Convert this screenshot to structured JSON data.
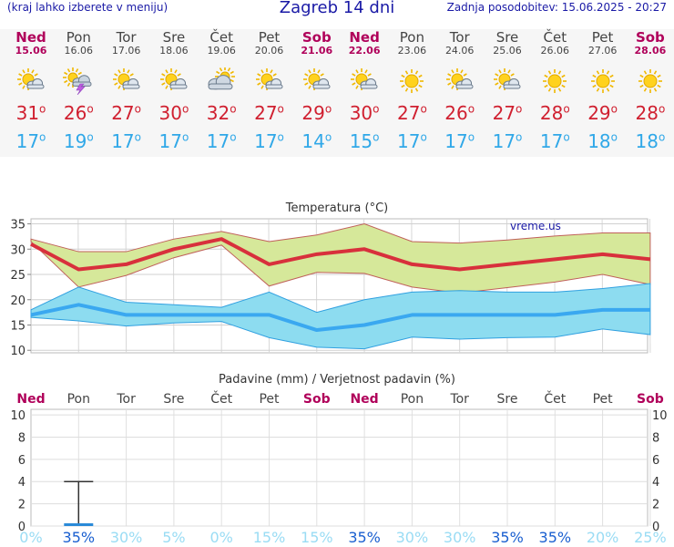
{
  "header": {
    "note": "(kraj lahko izberete v meniju)",
    "title": "Zagreb 14 dni",
    "updated": "Zadnja posodobitev: 15.06.2025 - 20:27"
  },
  "days": [
    {
      "name": "Ned",
      "date": "15.06",
      "weekend": true,
      "icon": "partly-cloudy-sun-icon",
      "tmax": "31",
      "tmin": "17"
    },
    {
      "name": "Pon",
      "date": "16.06",
      "weekend": false,
      "icon": "thunderstorm-sun-icon",
      "tmax": "26",
      "tmin": "19"
    },
    {
      "name": "Tor",
      "date": "17.06",
      "weekend": false,
      "icon": "partly-cloudy-sun-icon",
      "tmax": "27",
      "tmin": "17"
    },
    {
      "name": "Sre",
      "date": "18.06",
      "weekend": false,
      "icon": "partly-cloudy-sun-icon",
      "tmax": "30",
      "tmin": "17"
    },
    {
      "name": "Čet",
      "date": "19.06",
      "weekend": false,
      "icon": "cloudy-sun-icon",
      "tmax": "32",
      "tmin": "17"
    },
    {
      "name": "Pet",
      "date": "20.06",
      "weekend": false,
      "icon": "partly-cloudy-sun-icon",
      "tmax": "27",
      "tmin": "17"
    },
    {
      "name": "Sob",
      "date": "21.06",
      "weekend": true,
      "icon": "partly-cloudy-sun-icon",
      "tmax": "29",
      "tmin": "14"
    },
    {
      "name": "Ned",
      "date": "22.06",
      "weekend": true,
      "icon": "partly-cloudy-sun-icon",
      "tmax": "30",
      "tmin": "15"
    },
    {
      "name": "Pon",
      "date": "23.06",
      "weekend": false,
      "icon": "sun-icon",
      "tmax": "27",
      "tmin": "17"
    },
    {
      "name": "Tor",
      "date": "24.06",
      "weekend": false,
      "icon": "partly-cloudy-sun-icon",
      "tmax": "26",
      "tmin": "17"
    },
    {
      "name": "Sre",
      "date": "25.06",
      "weekend": false,
      "icon": "partly-cloudy-sun-icon",
      "tmax": "27",
      "tmin": "17"
    },
    {
      "name": "Čet",
      "date": "26.06",
      "weekend": false,
      "icon": "sun-icon",
      "tmax": "28",
      "tmin": "17"
    },
    {
      "name": "Pet",
      "date": "27.06",
      "weekend": false,
      "icon": "sun-icon",
      "tmax": "29",
      "tmin": "18"
    },
    {
      "name": "Sob",
      "date": "28.06",
      "weekend": true,
      "icon": "sun-icon",
      "tmax": "28",
      "tmin": "18"
    }
  ],
  "degree_symbol": "o",
  "colors": {
    "weekend": "#b0005a",
    "tmax": "#d02030",
    "tmin": "#30a8e8",
    "max_band": "#d6e89a",
    "min_band": "#8ddcf0",
    "max_line": "#d8303c",
    "min_line": "#3aa8f0",
    "prob_low": "#9adcf4",
    "prob_high": "#1a5fd0"
  },
  "chart_data": [
    {
      "type": "line",
      "title": "Temperatura (°C)",
      "watermark": "vreme.us",
      "yticks": [
        10,
        15,
        20,
        25,
        30,
        35
      ],
      "ylim": [
        9.5,
        36
      ],
      "x": [
        0,
        1,
        2,
        3,
        4,
        5,
        6,
        7,
        8,
        9,
        10,
        11,
        12,
        13
      ],
      "grid": true,
      "series": [
        {
          "role": "max",
          "values": [
            31,
            26,
            27,
            30,
            32,
            27,
            29,
            30,
            27,
            26,
            27,
            28,
            29,
            28
          ]
        },
        {
          "role": "max_upper",
          "values": [
            32,
            29.5,
            29.5,
            32,
            33.5,
            31.5,
            32.8,
            35,
            31.5,
            31.2,
            31.8,
            32.6,
            33.2,
            33.2
          ]
        },
        {
          "role": "max_lower",
          "values": [
            31.5,
            22.5,
            24.8,
            28.3,
            30.8,
            22.7,
            25.4,
            25.2,
            22.5,
            21.3,
            22.4,
            23.5,
            25,
            23
          ]
        },
        {
          "role": "min",
          "values": [
            17,
            19,
            17,
            17,
            17,
            17,
            14,
            15,
            17,
            17,
            17,
            17,
            18,
            18
          ]
        },
        {
          "role": "min_upper",
          "values": [
            18,
            22.5,
            19.5,
            19,
            18.5,
            21.5,
            17.5,
            20,
            21.5,
            21.8,
            21.5,
            21.5,
            22.2,
            23.2
          ]
        },
        {
          "role": "min_lower",
          "values": [
            16.5,
            15.8,
            14.8,
            15.4,
            15.7,
            12.5,
            10.6,
            10.3,
            12.6,
            12.2,
            12.5,
            12.6,
            14.2,
            13.1
          ]
        }
      ]
    },
    {
      "type": "bar",
      "title": "Padavine (mm) / Verjetnost padavin (%)",
      "categories": [
        "Ned",
        "Pon",
        "Tor",
        "Sre",
        "Čet",
        "Pet",
        "Sob",
        "Ned",
        "Pon",
        "Tor",
        "Sre",
        "Čet",
        "Pet",
        "Sob"
      ],
      "yticks": [
        0,
        2,
        4,
        6,
        8,
        10
      ],
      "ylim": [
        0,
        10.5
      ],
      "values": [
        0,
        0.2,
        0,
        0,
        0,
        0,
        0,
        0,
        0,
        0,
        0,
        0,
        0,
        0
      ],
      "range_max": [
        0,
        4,
        0,
        0,
        0,
        0,
        0,
        0,
        0,
        0,
        0,
        0,
        0,
        0
      ],
      "probabilities": [
        "0%",
        "35%",
        "30%",
        "5%",
        "0%",
        "15%",
        "15%",
        "35%",
        "30%",
        "30%",
        "35%",
        "35%",
        "20%",
        "25%"
      ],
      "grid": true
    }
  ]
}
